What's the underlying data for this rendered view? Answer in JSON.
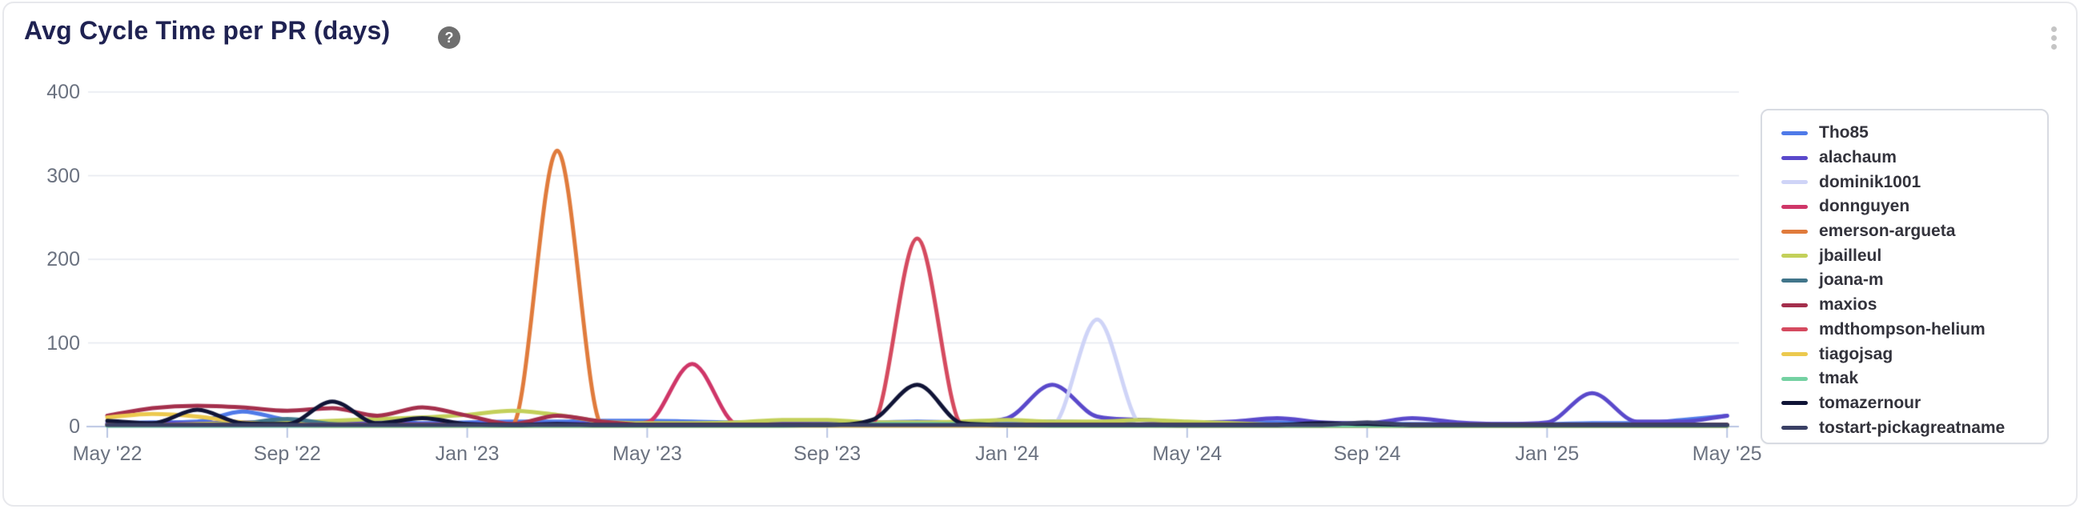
{
  "card": {
    "title": "Avg Cycle Time per PR (days)",
    "help_glyph": "?",
    "menu_icon": "kebab-vertical-icon"
  },
  "chart_data": {
    "type": "line",
    "title": "Avg Cycle Time per PR (days)",
    "x_unit": "month",
    "x_range": [
      "May '22",
      "May '25"
    ],
    "months_total": 37,
    "x_tick_labels": [
      "May '22",
      "Sep '22",
      "Jan '23",
      "May '23",
      "Sep '23",
      "Jan '24",
      "May '24",
      "Sep '24",
      "Jan '25",
      "May '25"
    ],
    "x_tick_month_indices": [
      0,
      4,
      8,
      12,
      16,
      20,
      24,
      28,
      32,
      36
    ],
    "y_tick_labels": [
      "0",
      "100",
      "200",
      "300",
      "400"
    ],
    "ylim": [
      0,
      400
    ],
    "grid": "horizontal",
    "legend_position": "right",
    "axis_color": "#b9c5e3",
    "grid_color": "#e5e8ef",
    "tick_label_color": "#6b7280",
    "series": [
      {
        "name": "Tho85",
        "color": "#4f7ae8",
        "values": [
          4,
          5,
          6,
          18,
          8,
          3,
          9,
          4,
          5,
          6,
          6,
          7,
          7,
          6,
          5,
          5,
          5,
          5,
          6,
          5,
          5,
          6,
          5,
          8,
          5,
          5,
          5,
          4,
          3,
          3,
          3,
          3,
          3,
          4,
          4,
          8,
          13
        ]
      },
      {
        "name": "alachaum",
        "color": "#5a49cb",
        "values": [
          3,
          4,
          4,
          5,
          4,
          3,
          4,
          3,
          3,
          3,
          3,
          4,
          4,
          4,
          4,
          4,
          4,
          4,
          5,
          5,
          10,
          50,
          12,
          8,
          5,
          6,
          10,
          5,
          4,
          10,
          5,
          3,
          5,
          40,
          6,
          6,
          13
        ]
      },
      {
        "name": "dominik1001",
        "color": "#cfd4f7",
        "values": [
          1,
          1,
          1,
          1,
          1,
          1,
          1,
          1,
          1,
          1,
          1,
          1,
          1,
          1,
          1,
          1,
          1,
          1,
          1,
          1,
          1,
          2,
          128,
          2,
          1,
          1,
          1,
          1,
          1,
          1,
          1,
          1,
          1,
          1,
          1,
          1,
          1
        ]
      },
      {
        "name": "donnguyen",
        "color": "#cf3668",
        "values": [
          2,
          2,
          2,
          2,
          2,
          2,
          2,
          2,
          2,
          2,
          2,
          2,
          5,
          75,
          3,
          2,
          2,
          2,
          2,
          2,
          2,
          2,
          2,
          2,
          2,
          2,
          2,
          2,
          2,
          2,
          2,
          2,
          2,
          2,
          2,
          2,
          2
        ]
      },
      {
        "name": "emerson-argueta",
        "color": "#e07b3c",
        "values": [
          2,
          2,
          2,
          2,
          2,
          2,
          2,
          2,
          2,
          2,
          330,
          2,
          2,
          2,
          2,
          2,
          2,
          2,
          2,
          2,
          2,
          2,
          2,
          2,
          2,
          2,
          2,
          2,
          2,
          2,
          2,
          2,
          2,
          2,
          2,
          2,
          2
        ]
      },
      {
        "name": "jbailleul",
        "color": "#c3d05a",
        "values": [
          2,
          2,
          3,
          4,
          5,
          7,
          9,
          11,
          14,
          19,
          14,
          6,
          4,
          4,
          5,
          8,
          8,
          5,
          5,
          6,
          8,
          6,
          6,
          8,
          6,
          4,
          2,
          1,
          1,
          1,
          1,
          1,
          1,
          1,
          1,
          1,
          1
        ]
      },
      {
        "name": "joana-m",
        "color": "#41758a",
        "values": [
          2,
          2,
          2,
          4,
          9,
          3,
          2,
          2,
          2,
          2,
          2,
          2,
          2,
          2,
          2,
          2,
          2,
          2,
          2,
          2,
          2,
          2,
          2,
          2,
          2,
          2,
          2,
          2,
          2,
          2,
          2,
          2,
          2,
          2,
          2,
          2,
          2
        ]
      },
      {
        "name": "maxios",
        "color": "#a42f4c",
        "values": [
          13,
          22,
          25,
          23,
          19,
          22,
          13,
          23,
          13,
          3,
          13,
          6,
          2,
          2,
          2,
          2,
          2,
          2,
          2,
          2,
          2,
          2,
          2,
          2,
          1,
          1,
          1,
          1,
          1,
          1,
          1,
          1,
          1,
          1,
          1,
          1,
          1
        ]
      },
      {
        "name": "mdthompson-helium",
        "color": "#d54a5f",
        "values": [
          2,
          2,
          2,
          2,
          2,
          2,
          2,
          2,
          2,
          2,
          2,
          2,
          2,
          2,
          2,
          2,
          2,
          4,
          225,
          3,
          2,
          2,
          2,
          2,
          2,
          2,
          2,
          2,
          2,
          2,
          2,
          2,
          2,
          2,
          2,
          2,
          2
        ]
      },
      {
        "name": "tiagojsag",
        "color": "#ecc94e",
        "values": [
          11,
          15,
          12,
          5,
          2,
          1,
          1,
          1,
          1,
          1,
          1,
          1,
          1,
          1,
          1,
          1,
          1,
          1,
          1,
          1,
          1,
          1,
          1,
          1,
          1,
          1,
          1,
          1,
          1,
          1,
          1,
          1,
          1,
          1,
          1,
          1,
          1
        ]
      },
      {
        "name": "tmak",
        "color": "#74d1a2",
        "values": [
          1,
          1,
          1,
          1,
          1,
          1,
          1,
          1,
          1,
          1,
          1,
          1,
          1,
          1,
          1,
          1,
          2,
          3,
          3,
          3,
          2,
          1,
          1,
          1,
          1,
          1,
          1,
          1,
          1,
          1,
          1,
          1,
          1,
          1,
          1,
          1,
          1
        ]
      },
      {
        "name": "tomazernour",
        "color": "#101436",
        "values": [
          7,
          4,
          20,
          4,
          3,
          30,
          4,
          10,
          3,
          2,
          3,
          2,
          2,
          2,
          2,
          2,
          2,
          8,
          50,
          4,
          2,
          2,
          2,
          2,
          2,
          2,
          2,
          4,
          3,
          2,
          2,
          2,
          2,
          2,
          2,
          2,
          2
        ]
      },
      {
        "name": "tostart-pickagreatname",
        "color": "#3a4065",
        "values": [
          2,
          2,
          2,
          2,
          2,
          2,
          2,
          2,
          2,
          2,
          2,
          2,
          2,
          2,
          2,
          2,
          2,
          2,
          2,
          2,
          2,
          2,
          2,
          2,
          2,
          2,
          2,
          2,
          5,
          2,
          2,
          2,
          2,
          2,
          2,
          2,
          2
        ]
      }
    ]
  }
}
